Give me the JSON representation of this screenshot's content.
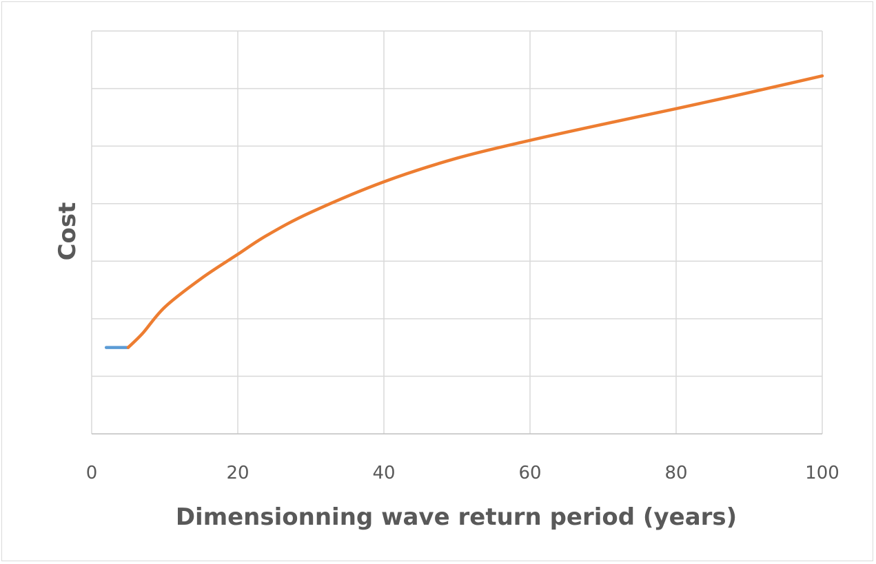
{
  "chart_data": {
    "type": "line",
    "title": "",
    "xlabel": "Dimensionning wave return period (years)",
    "ylabel": "Cost",
    "xlim": [
      0,
      100
    ],
    "ylim": [
      0,
      7
    ],
    "x_ticks": [
      "0",
      "20",
      "40",
      "60",
      "80",
      "100"
    ],
    "y_tick_labels_shown": false,
    "grid": true,
    "legend": "none",
    "series": [
      {
        "color": "#5b9bd5",
        "points": [
          [
            2,
            1.5
          ],
          [
            5,
            1.5
          ]
        ]
      },
      {
        "color": "#ed7d31",
        "points": [
          [
            5,
            1.5
          ],
          [
            7,
            1.75
          ],
          [
            10,
            2.2
          ],
          [
            15,
            2.7
          ],
          [
            20,
            3.12
          ],
          [
            24,
            3.45
          ],
          [
            30,
            3.85
          ],
          [
            40,
            4.38
          ],
          [
            50,
            4.79
          ],
          [
            60,
            5.1
          ],
          [
            70,
            5.38
          ],
          [
            80,
            5.65
          ],
          [
            90,
            5.93
          ],
          [
            100,
            6.22
          ]
        ]
      }
    ]
  }
}
